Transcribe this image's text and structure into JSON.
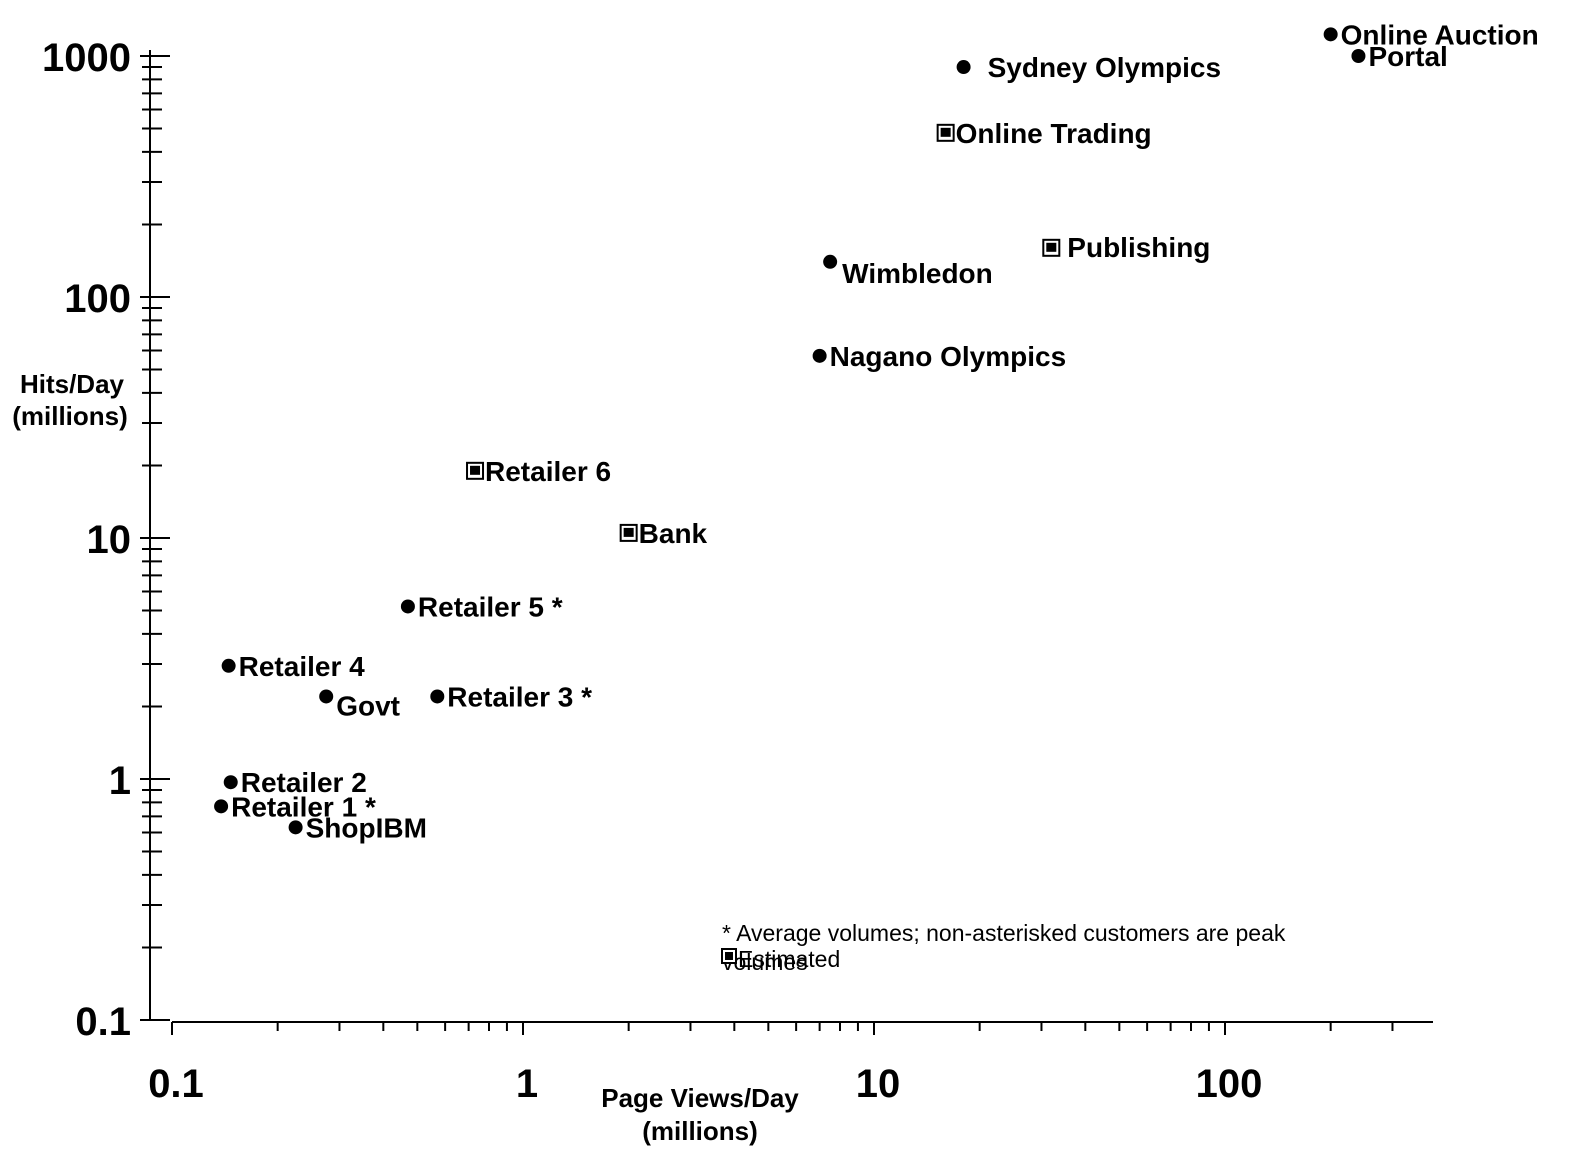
{
  "chart_data": {
    "type": "scatter",
    "x_scale": "log",
    "y_scale": "log",
    "xlim": [
      0.1,
      300
    ],
    "ylim": [
      0.1,
      1000
    ],
    "xlabel_lines": [
      "Page Views/Day",
      "(millions)"
    ],
    "ylabel_lines": [
      "Hits/Day",
      "(millions)"
    ],
    "x_tick_labels": [
      {
        "value": 0.1,
        "label": "0.1"
      },
      {
        "value": 1,
        "label": "1"
      },
      {
        "value": 10,
        "label": "10"
      },
      {
        "value": 100,
        "label": "100"
      }
    ],
    "y_tick_labels": [
      {
        "value": 0.1,
        "label": "0.1"
      },
      {
        "value": 1,
        "label": "1"
      },
      {
        "value": 10,
        "label": "10"
      },
      {
        "value": 100,
        "label": "100"
      },
      {
        "value": 1000,
        "label": "1000"
      }
    ],
    "grid": false,
    "markers": {
      "actual": "circle",
      "estimated": "square"
    },
    "points": [
      {
        "label": "Online Auction",
        "x": 200,
        "y": 1230,
        "marker": "circle"
      },
      {
        "label": "Portal",
        "x": 240,
        "y": 1000,
        "marker": "circle"
      },
      {
        "label": "Sydney Olympics",
        "x": 18,
        "y": 900,
        "marker": "circle"
      },
      {
        "label": "Online Trading",
        "x": 16,
        "y": 480,
        "marker": "square"
      },
      {
        "label": "Publishing",
        "x": 32,
        "y": 160,
        "marker": "square"
      },
      {
        "label": "Wimbledon",
        "x": 7.5,
        "y": 140,
        "marker": "circle"
      },
      {
        "label": "Nagano Olympics",
        "x": 7,
        "y": 57,
        "marker": "circle"
      },
      {
        "label": "Retailer 6",
        "x": 0.73,
        "y": 19,
        "marker": "square"
      },
      {
        "label": "Bank",
        "x": 2,
        "y": 10.5,
        "marker": "square"
      },
      {
        "label": "Retailer 5 *",
        "x": 0.47,
        "y": 5.2,
        "marker": "circle"
      },
      {
        "label": "Retailer 4",
        "x": 0.145,
        "y": 2.95,
        "marker": "circle"
      },
      {
        "label": "Govt",
        "x": 0.275,
        "y": 2.2,
        "marker": "circle"
      },
      {
        "label": "Retailer 3 *",
        "x": 0.57,
        "y": 2.2,
        "marker": "circle"
      },
      {
        "label": "Retailer 2",
        "x": 0.147,
        "y": 0.97,
        "marker": "circle"
      },
      {
        "label": "Retailer 1 *",
        "x": 0.138,
        "y": 0.77,
        "marker": "circle"
      },
      {
        "label": "ShopIBM",
        "x": 0.225,
        "y": 0.63,
        "marker": "circle"
      }
    ],
    "annotations": [
      "* Average volumes; non-asterisked customers are peak volumes",
      "Estimated"
    ]
  }
}
